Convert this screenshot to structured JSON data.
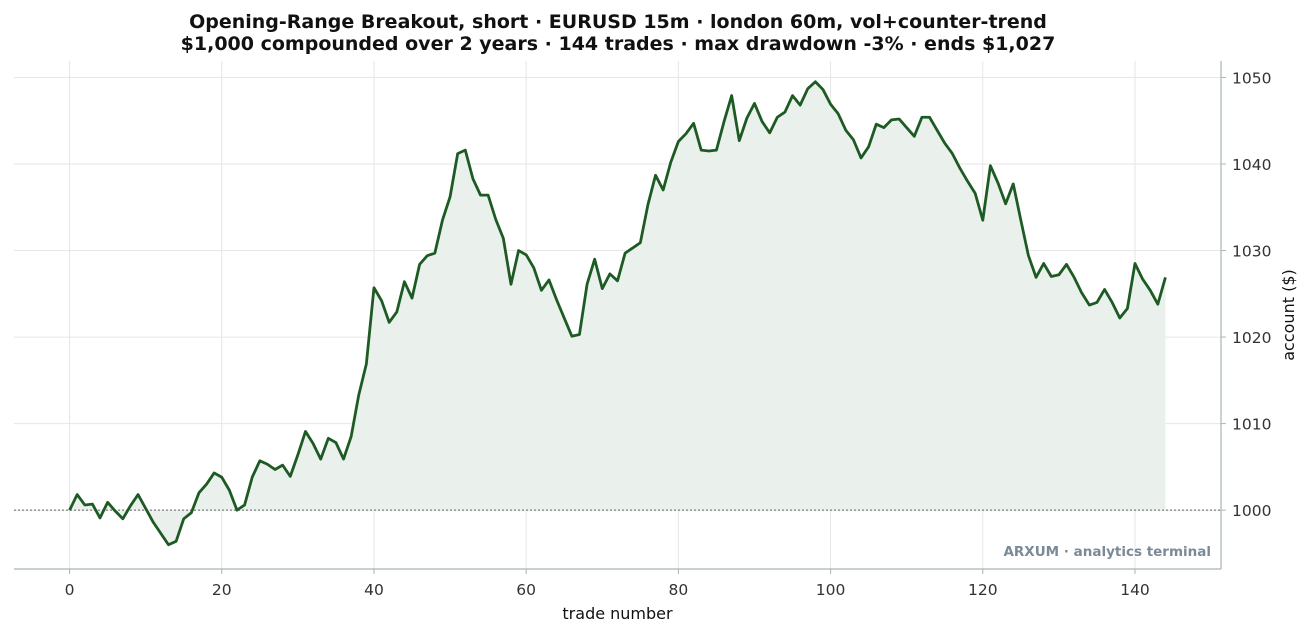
{
  "chart_data": {
    "type": "area",
    "title": "Opening-Range Breakout, short · EURUSD 15m · london 60m, vol+counter-trend",
    "subtitle": "$1,000 compounded over 2 years · 144 trades · max drawdown -3% · ends $1,027",
    "xlabel": "trade number",
    "ylabel": "account ($)",
    "xlim": [
      -7.3,
      151.3
    ],
    "ylim": [
      993.2,
      1051.9
    ],
    "x_ticks": [
      "0",
      "20",
      "40",
      "60",
      "80",
      "100",
      "120",
      "140"
    ],
    "y_ticks": [
      "1000",
      "1010",
      "1020",
      "1030",
      "1040",
      "1050"
    ],
    "y_axis_side": "right",
    "grid": true,
    "baseline": 1000,
    "watermark": "ARXUM · analytics terminal",
    "colors": {
      "line": "#1e5a24",
      "fill": "#eaf1ec",
      "baseline": "#888888",
      "grid": "#e6e6e6",
      "axis": "#a7b5b5"
    },
    "series": [
      {
        "x_start": 0,
        "values": [
          1000.0,
          1001.8,
          1000.6,
          1000.7,
          999.1,
          1000.9,
          999.9,
          999.0,
          1000.5,
          1001.8,
          1000.2,
          998.6,
          997.3,
          996.0,
          996.4,
          999.0,
          999.7,
          1002.0,
          1003.0,
          1004.3,
          1003.8,
          1002.3,
          1000.0,
          1000.6,
          1003.8,
          1005.7,
          1005.3,
          1004.7,
          1005.2,
          1003.9,
          1006.4,
          1009.1,
          1007.7,
          1005.9,
          1008.3,
          1007.8,
          1005.9,
          1008.5,
          1013.3,
          1016.9,
          1025.7,
          1024.2,
          1021.7,
          1022.9,
          1026.4,
          1024.5,
          1028.4,
          1029.4,
          1029.7,
          1033.5,
          1036.2,
          1041.2,
          1041.6,
          1038.3,
          1036.4,
          1036.4,
          1033.6,
          1031.4,
          1026.1,
          1030.0,
          1029.5,
          1028.0,
          1025.4,
          1026.6,
          1024.3,
          1022.2,
          1020.1,
          1020.3,
          1026.1,
          1029.0,
          1025.6,
          1027.3,
          1026.5,
          1029.7,
          1030.3,
          1030.9,
          1035.3,
          1038.7,
          1037.0,
          1040.2,
          1042.6,
          1043.5,
          1044.7,
          1041.6,
          1041.5,
          1041.6,
          1044.9,
          1047.9,
          1042.7,
          1045.3,
          1047.0,
          1044.9,
          1043.6,
          1045.4,
          1046.0,
          1047.9,
          1046.8,
          1048.7,
          1049.5,
          1048.6,
          1046.9,
          1045.8,
          1043.9,
          1042.8,
          1040.7,
          1042.0,
          1044.6,
          1044.2,
          1045.1,
          1045.2,
          1044.2,
          1043.2,
          1045.4,
          1045.4,
          1043.9,
          1042.4,
          1041.2,
          1039.5,
          1038.0,
          1036.6,
          1033.5,
          1039.8,
          1037.8,
          1035.4,
          1037.7,
          1033.5,
          1029.4,
          1026.9,
          1028.5,
          1027.0,
          1027.2,
          1028.4,
          1026.9,
          1025.1,
          1023.7,
          1024.0,
          1025.5,
          1024.0,
          1022.2,
          1023.3,
          1028.5,
          1026.7,
          1025.4,
          1023.8,
          1026.9
        ]
      }
    ]
  }
}
